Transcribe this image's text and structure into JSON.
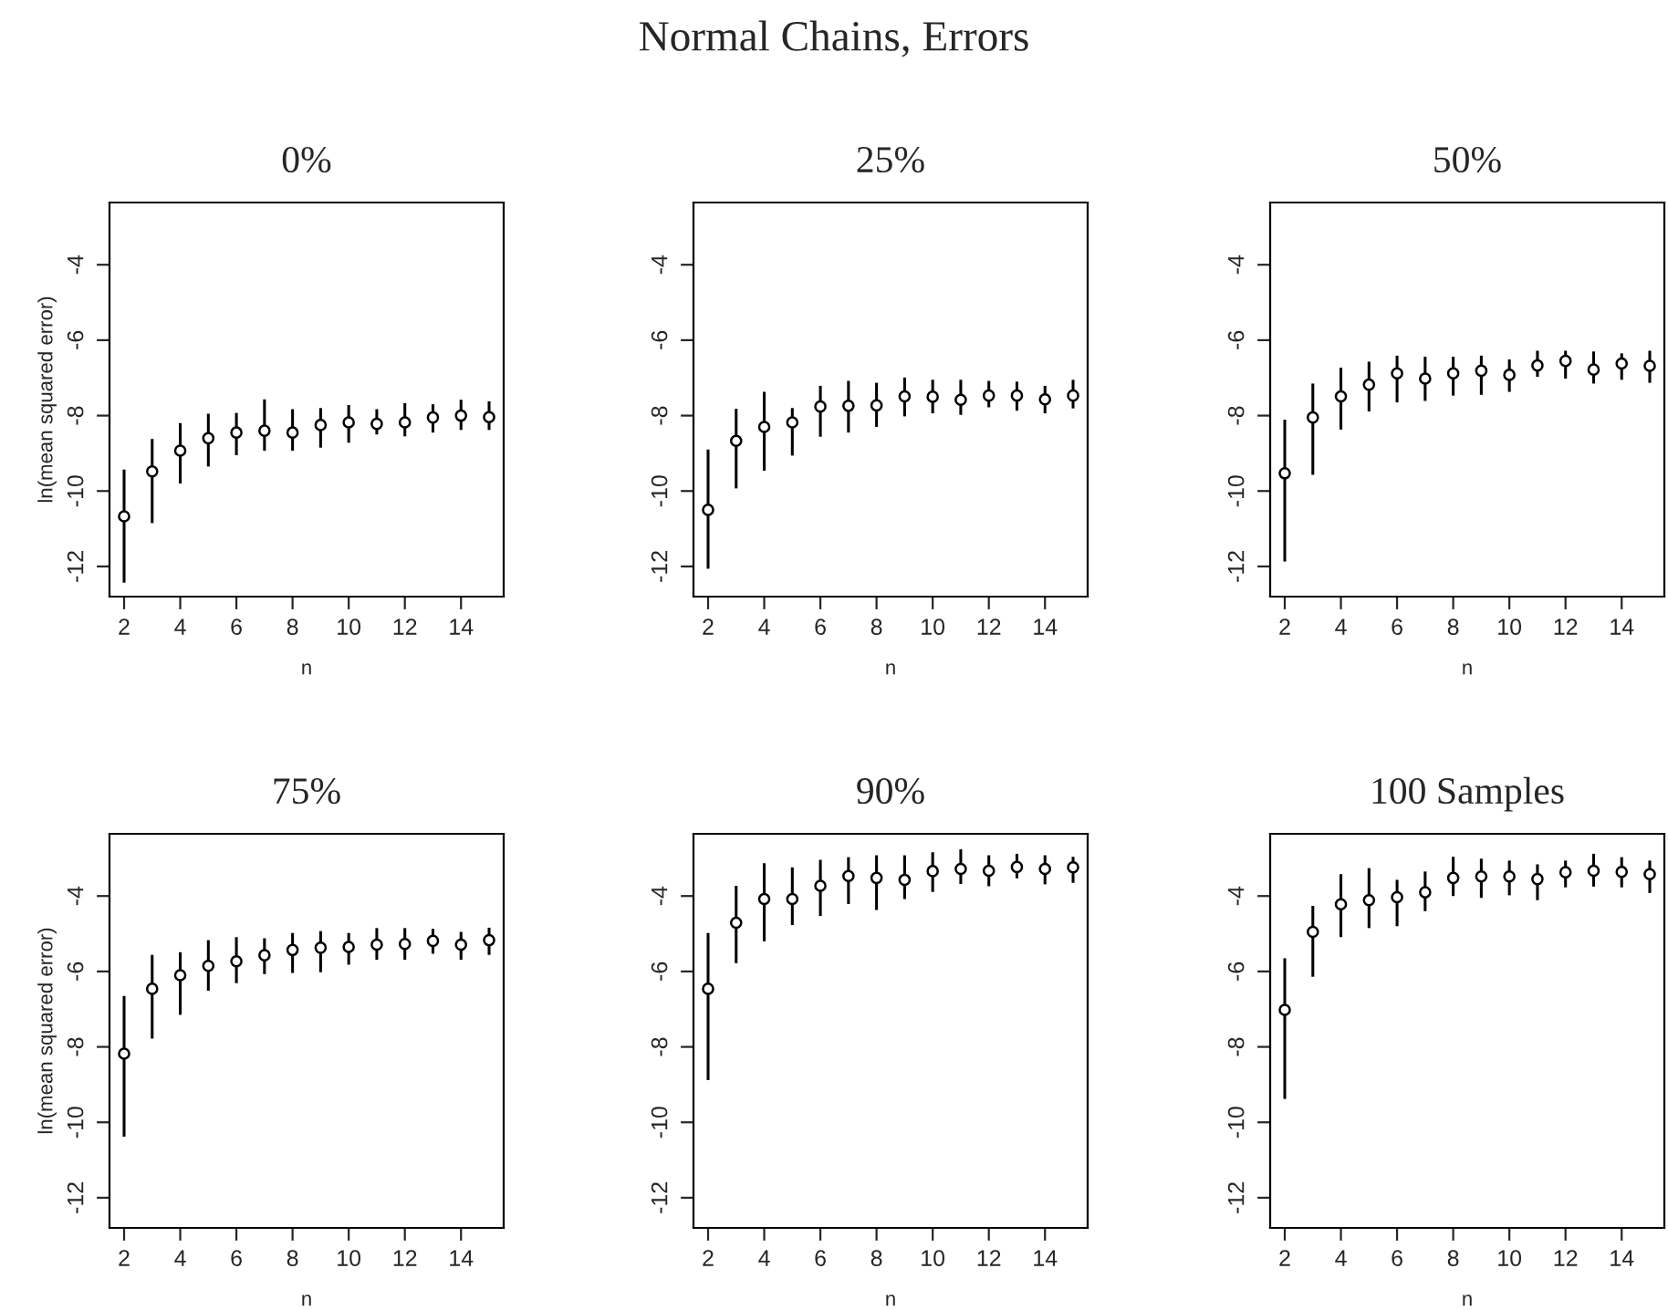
{
  "chart_data": [
    {
      "type": "scatter",
      "title": "0%",
      "annotations": [
        "Normal Chains, Errors"
      ],
      "xlabel": "n",
      "ylabel": "ln(mean squared error)",
      "marker": "circle",
      "xlim": [
        1.48,
        15.52
      ],
      "ylim": [
        -12.8,
        -2.35
      ],
      "xticks": [
        2,
        4,
        6,
        8,
        10,
        12,
        14
      ],
      "yticks": [
        -12,
        -10,
        -8,
        -6,
        -4
      ],
      "x": [
        2,
        3,
        4,
        5,
        6,
        7,
        8,
        9,
        10,
        11,
        12,
        13,
        14,
        15
      ],
      "values": [
        -10.67,
        -9.48,
        -8.93,
        -8.6,
        -8.45,
        -8.4,
        -8.45,
        -8.25,
        -8.18,
        -8.22,
        -8.18,
        -8.05,
        -8.0,
        -8.04
      ],
      "errors": [
        [
          -12.43,
          -9.43
        ],
        [
          -10.85,
          -8.62
        ],
        [
          -9.8,
          -8.2
        ],
        [
          -9.35,
          -7.95
        ],
        [
          -9.05,
          -7.93
        ],
        [
          -8.93,
          -7.57
        ],
        [
          -8.93,
          -7.83
        ],
        [
          -8.85,
          -7.8
        ],
        [
          -8.72,
          -7.72
        ],
        [
          -8.5,
          -7.83
        ],
        [
          -8.55,
          -7.67
        ],
        [
          -8.45,
          -7.7
        ],
        [
          -8.38,
          -7.58
        ],
        [
          -8.38,
          -7.62
        ]
      ]
    },
    {
      "type": "scatter",
      "title": "25%",
      "xlabel": "n",
      "marker": "circle",
      "xlim": [
        1.48,
        15.52
      ],
      "ylim": [
        -12.8,
        -2.35
      ],
      "xticks": [
        2,
        4,
        6,
        8,
        10,
        12,
        14
      ],
      "yticks": [
        -12,
        -10,
        -8,
        -6,
        -4
      ],
      "x": [
        2,
        3,
        4,
        5,
        6,
        7,
        8,
        9,
        10,
        11,
        12,
        13,
        14,
        15
      ],
      "values": [
        -10.5,
        -8.67,
        -8.3,
        -8.18,
        -7.76,
        -7.74,
        -7.73,
        -7.49,
        -7.5,
        -7.58,
        -7.47,
        -7.47,
        -7.57,
        -7.47
      ],
      "errors": [
        [
          -12.06,
          -8.9
        ],
        [
          -9.93,
          -7.82
        ],
        [
          -9.46,
          -7.37
        ],
        [
          -9.06,
          -7.8
        ],
        [
          -8.56,
          -7.21
        ],
        [
          -8.45,
          -7.08
        ],
        [
          -8.3,
          -7.13
        ],
        [
          -8.02,
          -6.99
        ],
        [
          -7.94,
          -7.05
        ],
        [
          -7.98,
          -7.05
        ],
        [
          -7.78,
          -7.08
        ],
        [
          -7.87,
          -7.1
        ],
        [
          -7.94,
          -7.21
        ],
        [
          -7.81,
          -7.05
        ]
      ]
    },
    {
      "type": "scatter",
      "title": "50%",
      "xlabel": "n",
      "marker": "circle",
      "xlim": [
        1.48,
        15.52
      ],
      "ylim": [
        -12.8,
        -2.35
      ],
      "xticks": [
        2,
        4,
        6,
        8,
        10,
        12,
        14
      ],
      "yticks": [
        -12,
        -10,
        -8,
        -6,
        -4
      ],
      "x": [
        2,
        3,
        4,
        5,
        6,
        7,
        8,
        9,
        10,
        11,
        12,
        13,
        14,
        15
      ],
      "values": [
        -9.53,
        -8.05,
        -7.49,
        -7.18,
        -6.88,
        -7.02,
        -6.88,
        -6.81,
        -6.92,
        -6.67,
        -6.55,
        -6.78,
        -6.62,
        -6.68
      ],
      "errors": [
        [
          -11.87,
          -8.11
        ],
        [
          -9.57,
          -7.15
        ],
        [
          -8.37,
          -6.73
        ],
        [
          -7.89,
          -6.57
        ],
        [
          -7.65,
          -6.41
        ],
        [
          -7.61,
          -6.44
        ],
        [
          -7.47,
          -6.44
        ],
        [
          -7.45,
          -6.41
        ],
        [
          -7.37,
          -6.51
        ],
        [
          -6.97,
          -6.28
        ],
        [
          -7.02,
          -6.28
        ],
        [
          -7.15,
          -6.3
        ],
        [
          -7.05,
          -6.35
        ],
        [
          -7.13,
          -6.28
        ]
      ]
    },
    {
      "type": "scatter",
      "title": "75%",
      "xlabel": "n",
      "ylabel": "ln(mean squared error)",
      "marker": "circle",
      "xlim": [
        1.48,
        15.52
      ],
      "ylim": [
        -12.8,
        -2.35
      ],
      "xticks": [
        2,
        4,
        6,
        8,
        10,
        12,
        14
      ],
      "yticks": [
        -12,
        -10,
        -8,
        -6,
        -4
      ],
      "x": [
        2,
        3,
        4,
        5,
        6,
        7,
        8,
        9,
        10,
        11,
        12,
        13,
        14,
        15
      ],
      "values": [
        -8.18,
        -6.46,
        -6.1,
        -5.85,
        -5.73,
        -5.57,
        -5.43,
        -5.37,
        -5.35,
        -5.29,
        -5.27,
        -5.19,
        -5.29,
        -5.17
      ],
      "errors": [
        [
          -10.38,
          -6.65
        ],
        [
          -7.78,
          -5.56
        ],
        [
          -7.15,
          -5.49
        ],
        [
          -6.51,
          -5.17
        ],
        [
          -6.31,
          -5.09
        ],
        [
          -6.07,
          -5.12
        ],
        [
          -6.04,
          -4.98
        ],
        [
          -6.02,
          -4.93
        ],
        [
          -5.82,
          -4.98
        ],
        [
          -5.69,
          -4.85
        ],
        [
          -5.69,
          -4.85
        ],
        [
          -5.53,
          -4.87
        ],
        [
          -5.69,
          -4.95
        ],
        [
          -5.56,
          -4.84
        ]
      ]
    },
    {
      "type": "scatter",
      "title": "90%",
      "xlabel": "n",
      "marker": "circle",
      "xlim": [
        1.48,
        15.52
      ],
      "ylim": [
        -12.8,
        -2.35
      ],
      "xticks": [
        2,
        4,
        6,
        8,
        10,
        12,
        14
      ],
      "yticks": [
        -12,
        -10,
        -8,
        -6,
        -4
      ],
      "x": [
        2,
        3,
        4,
        5,
        6,
        7,
        8,
        9,
        10,
        11,
        12,
        13,
        14,
        15
      ],
      "values": [
        -6.46,
        -4.71,
        -4.08,
        -4.08,
        -3.73,
        -3.47,
        -3.52,
        -3.57,
        -3.34,
        -3.28,
        -3.33,
        -3.23,
        -3.28,
        -3.24
      ],
      "errors": [
        [
          -8.88,
          -4.98
        ],
        [
          -5.78,
          -3.73
        ],
        [
          -5.2,
          -3.13
        ],
        [
          -4.77,
          -3.24
        ],
        [
          -4.53,
          -3.04
        ],
        [
          -4.21,
          -2.97
        ],
        [
          -4.37,
          -2.92
        ],
        [
          -4.08,
          -2.92
        ],
        [
          -3.89,
          -2.84
        ],
        [
          -3.68,
          -2.76
        ],
        [
          -3.74,
          -2.92
        ],
        [
          -3.53,
          -2.88
        ],
        [
          -3.69,
          -2.92
        ],
        [
          -3.65,
          -2.96
        ]
      ]
    },
    {
      "type": "scatter",
      "title": "100 Samples",
      "xlabel": "n",
      "marker": "circle",
      "xlim": [
        1.48,
        15.52
      ],
      "ylim": [
        -12.8,
        -2.35
      ],
      "xticks": [
        2,
        4,
        6,
        8,
        10,
        12,
        14
      ],
      "yticks": [
        -12,
        -10,
        -8,
        -6,
        -4
      ],
      "x": [
        2,
        3,
        4,
        5,
        6,
        7,
        8,
        9,
        10,
        11,
        12,
        13,
        14,
        15
      ],
      "values": [
        -7.02,
        -4.95,
        -4.22,
        -4.11,
        -4.03,
        -3.9,
        -3.52,
        -3.48,
        -3.48,
        -3.55,
        -3.37,
        -3.33,
        -3.36,
        -3.42
      ],
      "errors": [
        [
          -9.38,
          -5.65
        ],
        [
          -6.14,
          -4.26
        ],
        [
          -5.09,
          -3.42
        ],
        [
          -4.85,
          -3.26
        ],
        [
          -4.8,
          -3.57
        ],
        [
          -4.4,
          -3.35
        ],
        [
          -4.0,
          -2.96
        ],
        [
          -4.05,
          -3.01
        ],
        [
          -3.98,
          -3.06
        ],
        [
          -4.11,
          -3.16
        ],
        [
          -3.77,
          -3.06
        ],
        [
          -3.75,
          -2.88
        ],
        [
          -3.77,
          -2.97
        ],
        [
          -3.92,
          -3.06
        ]
      ]
    }
  ]
}
